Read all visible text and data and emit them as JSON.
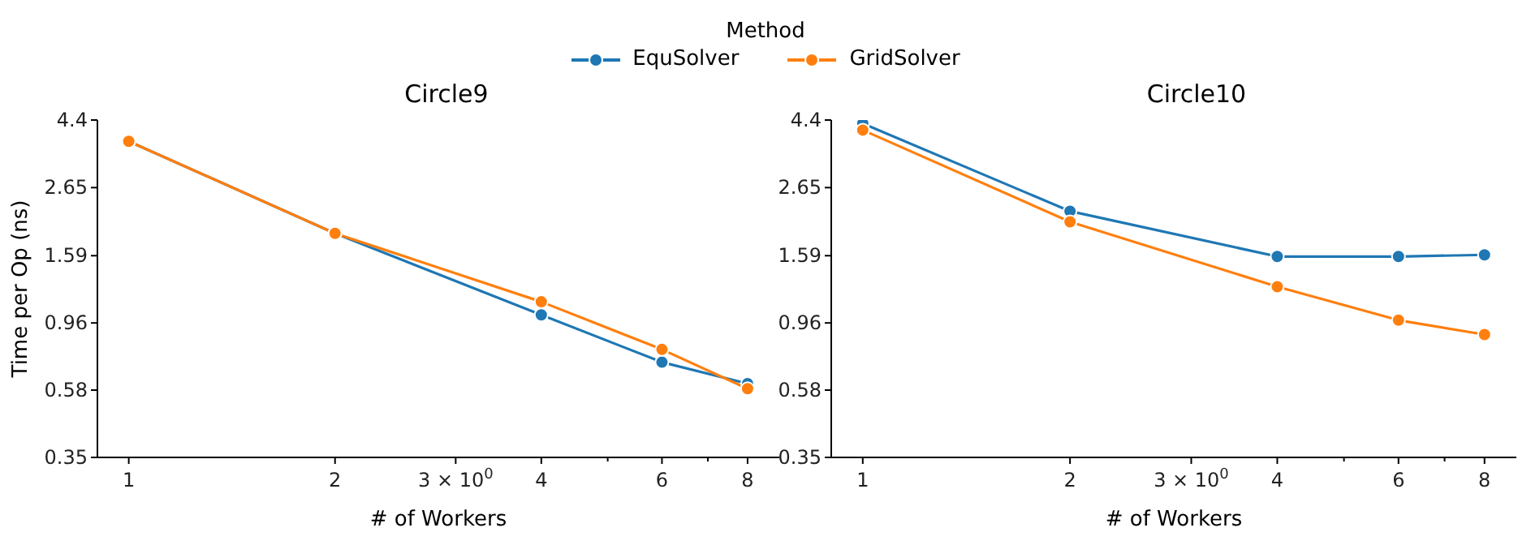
{
  "chart_data": [
    {
      "type": "line",
      "title": "Circle9",
      "xlabel": "# of Workers",
      "ylabel": "Time per Op (ns)",
      "legend_title": "Method",
      "legend": "top",
      "log": "xy",
      "grid": false,
      "marker": "circle",
      "line_style": "solid",
      "x": [
        1,
        2,
        4,
        6,
        8
      ],
      "xlim": [
        0.9,
        8.9
      ],
      "xticks": [
        1,
        2,
        {
          "value": 3,
          "label": "3 × 10$^{0}$"
        },
        4,
        {
          "value": 5,
          "label": null
        },
        6,
        {
          "value": 7,
          "label": null
        },
        8
      ],
      "ylim": [
        0.35,
        4.4
      ],
      "yticks": [
        0.35,
        0.58,
        0.96,
        1.59,
        2.65,
        4.4
      ],
      "series": [
        {
          "name": "EquSolver",
          "color": "#1f77b4",
          "values": [
            3.75,
            1.88,
            1.02,
            0.715,
            0.609
          ]
        },
        {
          "name": "GridSolver",
          "color": "#ff7f0e",
          "values": [
            3.75,
            1.88,
            1.125,
            0.787,
            0.586
          ]
        }
      ]
    },
    {
      "type": "line",
      "title": "Circle10",
      "xlabel": "# of Workers",
      "log": "xy",
      "grid": false,
      "legend": false,
      "marker": "circle",
      "line_style": "solid",
      "x": [
        1,
        2,
        4,
        6,
        8
      ],
      "xlim": [
        0.9,
        8.9
      ],
      "xticks": [
        1,
        2,
        {
          "value": 3,
          "label": "3 × 10$^{0}$"
        },
        4,
        {
          "value": 5,
          "label": null
        },
        6,
        {
          "value": 7,
          "label": null
        },
        8
      ],
      "ylim": [
        0.35,
        4.4
      ],
      "yticks": [
        0.35,
        0.58,
        0.96,
        1.59,
        2.65,
        4.4
      ],
      "series": [
        {
          "color": "#1f77b4",
          "values": [
            4.29,
            2.22,
            1.58,
            1.58,
            1.6
          ]
        },
        {
          "color": "#ff7f0e",
          "values": [
            4.08,
            2.05,
            1.26,
            0.98,
            0.88
          ]
        }
      ]
    }
  ]
}
